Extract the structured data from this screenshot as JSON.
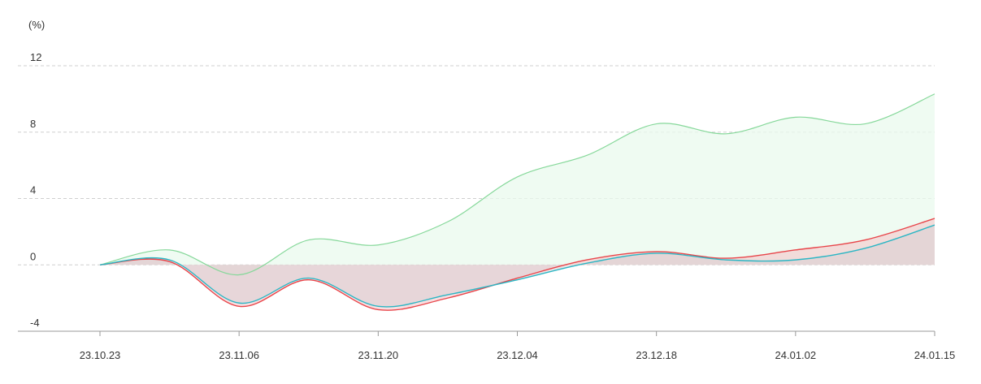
{
  "chart_data": {
    "type": "line",
    "unit_label": "(%)",
    "ylim": [
      -4,
      12
    ],
    "y_ticks": [
      "12",
      "8",
      "4",
      "0",
      "-4"
    ],
    "y_tick_values": [
      12,
      8,
      4,
      0,
      -4
    ],
    "x_ticks": [
      "23.10.23",
      "23.11.06",
      "23.11.20",
      "23.12.04",
      "23.12.18",
      "24.01.02",
      "24.01.15"
    ],
    "grid": true,
    "x": [
      "23.10.23",
      "23.10.30",
      "23.11.06",
      "23.11.13",
      "23.11.20",
      "23.11.27",
      "23.12.04",
      "23.12.11",
      "23.12.18",
      "23.12.25",
      "24.01.02",
      "24.01.08",
      "24.01.15"
    ],
    "series": [
      {
        "color": "#86d89a",
        "fill": "#eaf9ee",
        "values": [
          0,
          0.9,
          -0.6,
          1.5,
          1.2,
          2.6,
          5.3,
          6.6,
          8.5,
          7.9,
          8.9,
          8.5,
          10.3
        ]
      },
      {
        "color": "#e8454a",
        "fill": "#f4c2c6",
        "values": [
          0,
          0.2,
          -2.5,
          -0.9,
          -2.7,
          -2.0,
          -0.8,
          0.3,
          0.8,
          0.4,
          0.9,
          1.5,
          2.8
        ]
      },
      {
        "color": "#2bb6c4",
        "fill": "#d9cfd3",
        "values": [
          0,
          0.3,
          -2.3,
          -0.8,
          -2.5,
          -1.8,
          -0.9,
          0.1,
          0.7,
          0.3,
          0.3,
          1.0,
          2.4
        ]
      }
    ]
  }
}
